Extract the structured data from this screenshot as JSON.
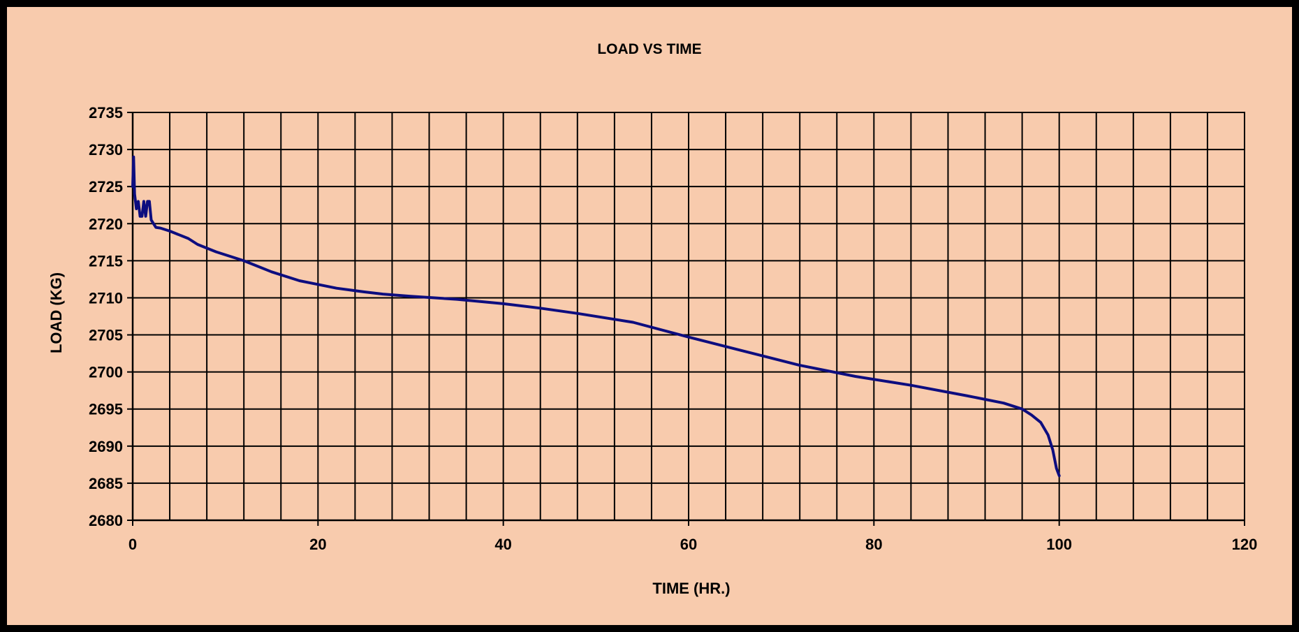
{
  "chart_data": {
    "type": "line",
    "title": "LOAD VS TIME",
    "xlabel": "TIME (HR.)",
    "ylabel": "LOAD (KG)",
    "xlim": [
      0,
      120
    ],
    "ylim": [
      2680,
      2735
    ],
    "x_ticks": [
      0,
      20,
      40,
      60,
      80,
      100,
      120
    ],
    "x_minor_step": 4,
    "y_ticks": [
      2680,
      2685,
      2690,
      2695,
      2700,
      2705,
      2710,
      2715,
      2720,
      2725,
      2730,
      2735
    ],
    "grid": true,
    "legend": "none",
    "background_color": "#f8cbad",
    "grid_color": "#000000",
    "series": [
      {
        "color": "#0d0d7f",
        "x": [
          0,
          0.1,
          0.2,
          0.4,
          0.6,
          0.8,
          1.0,
          1.2,
          1.4,
          1.6,
          1.8,
          2.0,
          2.5,
          3,
          4,
          6,
          7,
          9,
          12,
          15,
          18,
          20,
          22,
          25,
          27,
          30,
          35,
          40,
          44,
          48,
          54,
          60,
          66,
          72,
          78,
          84,
          90,
          94,
          96,
          97,
          98,
          98.8,
          99.3,
          99.7,
          100
        ],
        "y": [
          2725,
          2729,
          2724,
          2722,
          2723,
          2721,
          2721,
          2723,
          2721,
          2723,
          2723,
          2720.5,
          2719.5,
          2719.4,
          2719,
          2718,
          2717.2,
          2716.2,
          2715,
          2713.5,
          2712.3,
          2711.8,
          2711.3,
          2710.8,
          2710.5,
          2710.2,
          2709.8,
          2709.2,
          2708.6,
          2707.9,
          2706.7,
          2704.7,
          2702.8,
          2700.9,
          2699.4,
          2698.2,
          2696.8,
          2695.8,
          2695,
          2694.2,
          2693.2,
          2691.5,
          2689.5,
          2687,
          2686
        ]
      }
    ]
  }
}
